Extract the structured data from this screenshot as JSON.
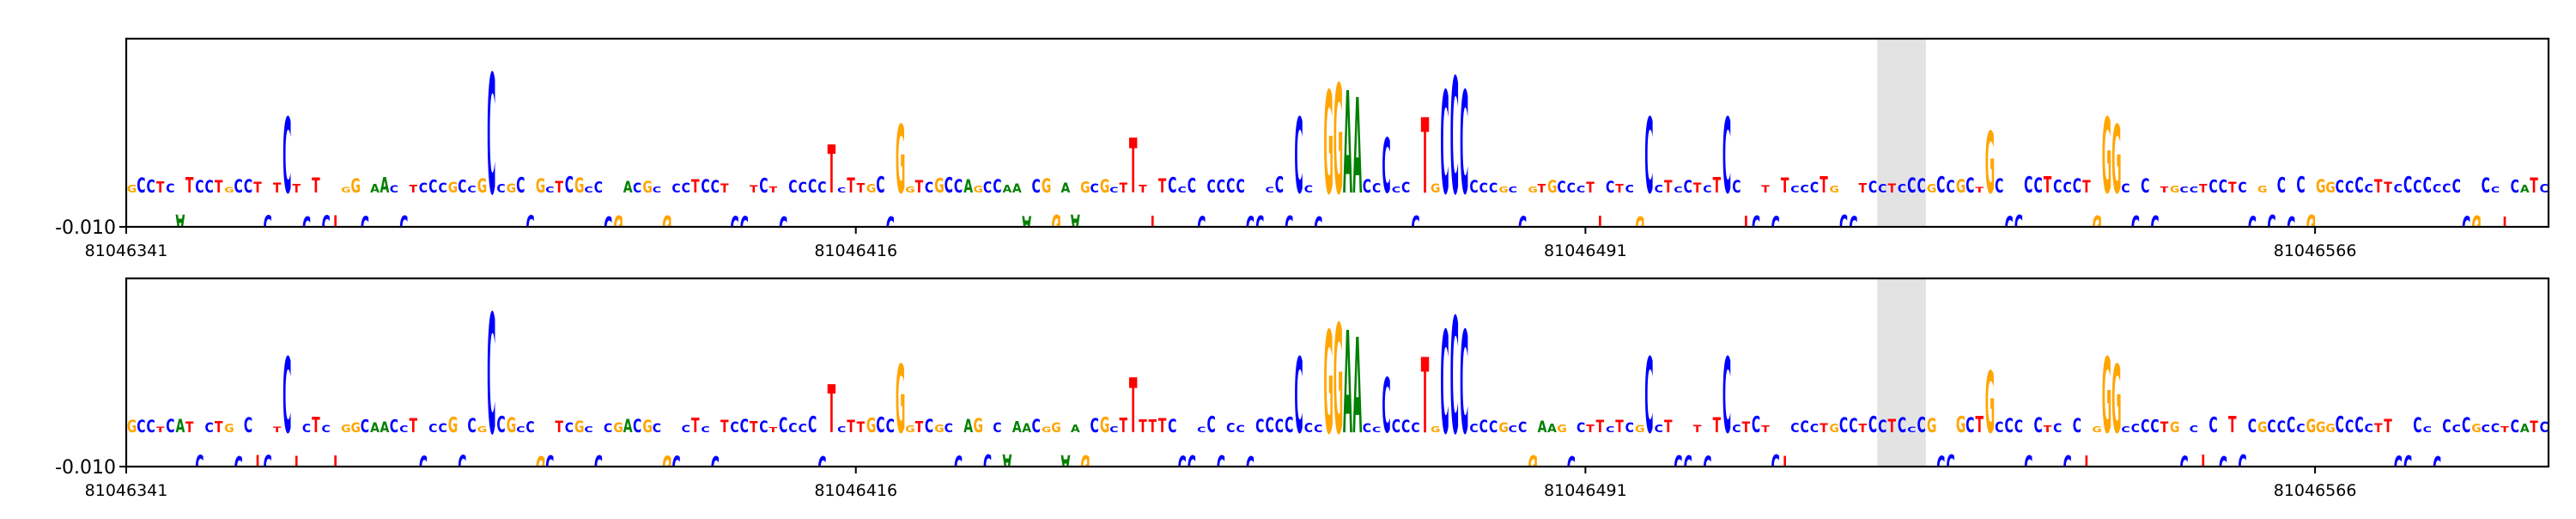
{
  "chart_data": [
    {
      "type": "sequence-logo",
      "title": "",
      "xlabel": "",
      "ylabel": "",
      "x_start": 81046341,
      "x_end": 81046590,
      "x_ticks": [
        81046341,
        81046416,
        81046491,
        81046566
      ],
      "x_tick_labels": [
        "81046341",
        "81046416",
        "81046491",
        "81046566"
      ],
      "y_ticks": [
        -0.01
      ],
      "y_tick_labels": [
        "-0.010"
      ],
      "ylim": [
        -0.01,
        0.045
      ],
      "highlight_range": [
        81046521,
        81046526
      ],
      "base_colors": {
        "A": "#008000",
        "C": "#0000ff",
        "G": "#ffa500",
        "T": "#ff0000"
      },
      "sequence": "GCCTCATCCTGCCTCTCTCTCTGGCAACCTCCCGCCGCCGCCGCTCGCCCGACGCGCCTCCTCCTCTCCCCCCCTTGCCGGTCGCCAGCCAAACGGAAGCGCTCTTTCCCCCCCCCCCCCCCCCCCCCCCCCCCGCCCCCCGCCGTGCCCTTCTCGGCTCCTCTGCTCTCTCCCTGCCTCCTCCCGCCGCTCCCCCCTCCCTGCCCCCCTGCCTCCTCCGCCCCGGGCCCCTTCCCCCCCC",
      "peaks": [
        {
          "pos": 81046357,
          "h": 0.022,
          "base": "C"
        },
        {
          "pos": 81046378,
          "h": 0.035,
          "base": "C"
        },
        {
          "pos": 81046413,
          "h": 0.014,
          "base": "T"
        },
        {
          "pos": 81046420,
          "h": 0.02,
          "base": "G"
        },
        {
          "pos": 81046444,
          "h": 0.016,
          "base": "T"
        },
        {
          "pos": 81046461,
          "h": 0.022,
          "base": "C"
        },
        {
          "pos": 81046464,
          "h": 0.03,
          "base": "G"
        },
        {
          "pos": 81046465,
          "h": 0.032,
          "base": "G"
        },
        {
          "pos": 81046466,
          "h": 0.03,
          "base": "A"
        },
        {
          "pos": 81046467,
          "h": 0.028,
          "base": "A"
        },
        {
          "pos": 81046470,
          "h": 0.016,
          "base": "C"
        },
        {
          "pos": 81046474,
          "h": 0.022,
          "base": "T"
        },
        {
          "pos": 81046476,
          "h": 0.03,
          "base": "C"
        },
        {
          "pos": 81046477,
          "h": 0.034,
          "base": "C"
        },
        {
          "pos": 81046478,
          "h": 0.03,
          "base": "C"
        },
        {
          "pos": 81046497,
          "h": 0.022,
          "base": "C"
        },
        {
          "pos": 81046505,
          "h": 0.022,
          "base": "C"
        },
        {
          "pos": 81046532,
          "h": 0.018,
          "base": "G"
        },
        {
          "pos": 81046544,
          "h": 0.022,
          "base": "G"
        },
        {
          "pos": 81046545,
          "h": 0.02,
          "base": "G"
        }
      ]
    },
    {
      "type": "sequence-logo",
      "title": "",
      "xlabel": "",
      "ylabel": "",
      "x_start": 81046341,
      "x_end": 81046590,
      "x_ticks": [
        81046341,
        81046416,
        81046491,
        81046566
      ],
      "x_tick_labels": [
        "81046341",
        "81046416",
        "81046491",
        "81046566"
      ],
      "y_ticks": [
        -0.01
      ],
      "y_tick_labels": [
        "-0.010"
      ],
      "ylim": [
        -0.01,
        0.045
      ],
      "highlight_range": [
        81046521,
        81046526
      ],
      "base_colors": {
        "A": "#008000",
        "C": "#0000ff",
        "G": "#ffa500",
        "T": "#ff0000"
      },
      "sequence": "GCCTCATCCTGCCTCTCTCTCTGGCAACCTCCCGCCGCCGCCGCTCGCCCGACGCGCCTCCTCCTCTCCCCCCCTTGCCGGTCGCCAGCCAAACGGAAGCGCTCTTTCCCCCCCCCCCCCCCCCCCCCCCCCCCGCCCCCCGCCGAAGCCTTCTCGGCTCCTCTGCTCTCTCCCTGCCTCCTCCCGCCGCTCCCCCCTCCCTGCCCCCCTGCCTCCTCCGCCCCGGGCCCCTTCCCCCCCC",
      "peaks": [
        {
          "pos": 81046357,
          "h": 0.022,
          "base": "C"
        },
        {
          "pos": 81046378,
          "h": 0.035,
          "base": "C"
        },
        {
          "pos": 81046413,
          "h": 0.014,
          "base": "T"
        },
        {
          "pos": 81046420,
          "h": 0.02,
          "base": "G"
        },
        {
          "pos": 81046444,
          "h": 0.016,
          "base": "T"
        },
        {
          "pos": 81046461,
          "h": 0.022,
          "base": "C"
        },
        {
          "pos": 81046464,
          "h": 0.03,
          "base": "G"
        },
        {
          "pos": 81046465,
          "h": 0.032,
          "base": "G"
        },
        {
          "pos": 81046466,
          "h": 0.03,
          "base": "A"
        },
        {
          "pos": 81046467,
          "h": 0.028,
          "base": "A"
        },
        {
          "pos": 81046470,
          "h": 0.016,
          "base": "C"
        },
        {
          "pos": 81046474,
          "h": 0.022,
          "base": "T"
        },
        {
          "pos": 81046476,
          "h": 0.03,
          "base": "C"
        },
        {
          "pos": 81046477,
          "h": 0.034,
          "base": "C"
        },
        {
          "pos": 81046478,
          "h": 0.03,
          "base": "C"
        },
        {
          "pos": 81046497,
          "h": 0.022,
          "base": "C"
        },
        {
          "pos": 81046505,
          "h": 0.022,
          "base": "C"
        },
        {
          "pos": 81046532,
          "h": 0.018,
          "base": "G"
        },
        {
          "pos": 81046544,
          "h": 0.022,
          "base": "G"
        },
        {
          "pos": 81046545,
          "h": 0.02,
          "base": "G"
        }
      ]
    }
  ]
}
